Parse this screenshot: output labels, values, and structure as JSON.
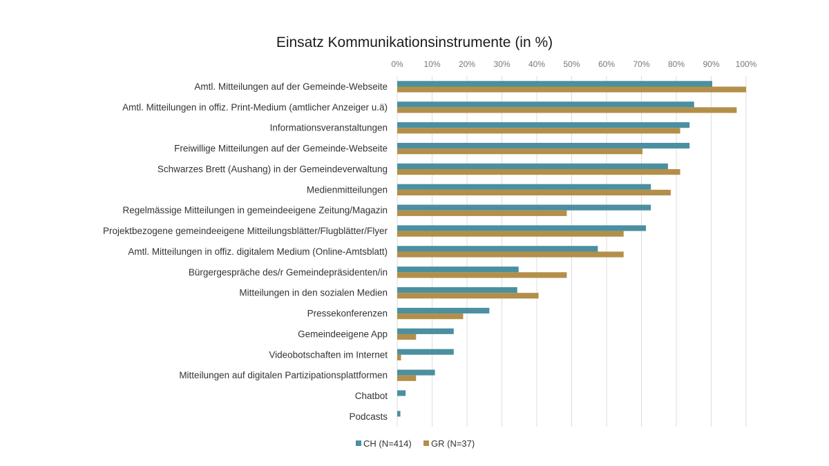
{
  "chart_data": {
    "type": "bar",
    "orientation": "horizontal",
    "title": "Einsatz Kommunikationsinstrumente (in %)",
    "xlabel": "",
    "ylabel": "",
    "xlim": [
      0,
      100
    ],
    "x_ticks": [
      "0%",
      "10%",
      "20%",
      "30%",
      "40%",
      "50%",
      "60%",
      "70%",
      "80%",
      "90%",
      "100%"
    ],
    "grid": true,
    "legend_position": "bottom",
    "categories": [
      "Amtl. Mitteilungen auf der Gemeinde-Webseite",
      "Amtl. Mitteilungen in offiz. Print-Medium (amtlicher Anzeiger u.ä)",
      "Informationsveranstaltungen",
      "Freiwillige Mitteilungen auf der Gemeinde-Webseite",
      "Schwarzes Brett (Aushang) in der Gemeindeverwaltung",
      "Medienmitteilungen",
      "Regelmässige Mitteilungen in gemeindeeigene Zeitung/Magazin",
      "Projektbezogene gemeindeeigene Mitteilungsblätter/Flugblätter/Flyer",
      "Amtl. Mitteilungen in offiz. digitalem Medium (Online-Amtsblatt)",
      "Bürgergespräche des/r Gemeindepräsidenten/in",
      "Mitteilungen in den sozialen Medien",
      "Pressekonferenzen",
      "Gemeindeeigene App",
      "Videobotschaften im Internet",
      "Mitteilungen auf digitalen Partizipationsplattformen",
      "Chatbot",
      "Podcasts"
    ],
    "series": [
      {
        "name": "CH (N=414)",
        "color": "#4b8fa0",
        "values": [
          90.3,
          85.1,
          83.8,
          83.8,
          77.6,
          72.7,
          72.7,
          71.3,
          57.5,
          34.8,
          34.4,
          26.4,
          16.2,
          16.2,
          10.8,
          2.4,
          0.9
        ]
      },
      {
        "name": "GR (N=37)",
        "color": "#b38f4a",
        "values": [
          100,
          97.3,
          81.1,
          70.3,
          81.1,
          78.4,
          48.6,
          64.9,
          64.9,
          48.6,
          40.5,
          18.9,
          5.4,
          1.1,
          5.4,
          0,
          0
        ]
      }
    ]
  }
}
